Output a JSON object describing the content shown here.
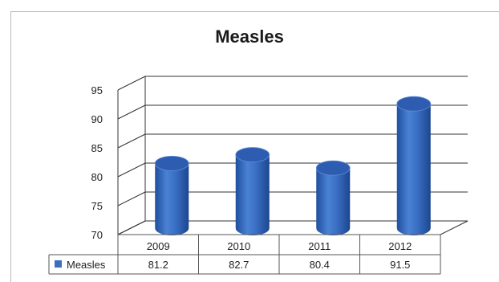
{
  "chart_data": {
    "type": "bar",
    "style": "3d-cylinder",
    "title": "Measles",
    "categories": [
      "2009",
      "2010",
      "2011",
      "2012"
    ],
    "series": [
      {
        "name": "Measles",
        "values": [
          81.2,
          82.7,
          80.4,
          91.5
        ],
        "color": "#3c6fc2"
      }
    ],
    "ylim": [
      70,
      95
    ],
    "yticks": [
      70,
      75,
      80,
      85,
      90,
      95
    ],
    "grid": true,
    "legend": "data-table-left",
    "data_table": true
  }
}
